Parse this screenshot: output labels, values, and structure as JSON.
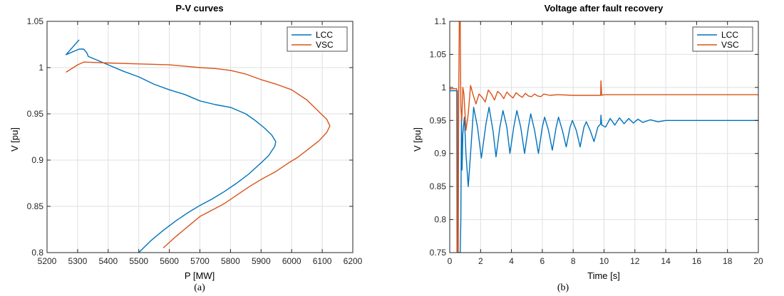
{
  "chart_data": [
    {
      "type": "line",
      "title": "P-V curves",
      "xlabel": "P [MW]",
      "ylabel": "V [pu]",
      "xlim": [
        5200,
        6200
      ],
      "ylim": [
        0.8,
        1.05
      ],
      "xticks": [
        5200,
        5300,
        5400,
        5500,
        5600,
        5700,
        5800,
        5900,
        6000,
        6100,
        6200
      ],
      "yticks": [
        0.8,
        0.85,
        0.9,
        0.95,
        1,
        1.05
      ],
      "grid": true,
      "legend": "top-right",
      "caption": "(a)",
      "series": [
        {
          "name": "LCC",
          "color": "#0072BD",
          "points": [
            [
              5305,
              1.03
            ],
            [
              5262,
              1.014
            ],
            [
              5305,
              1.02
            ],
            [
              5320,
              1.02
            ],
            [
              5330,
              1.016
            ],
            [
              5335,
              1.012
            ],
            [
              5350,
              1.01
            ],
            [
              5400,
              1.003
            ],
            [
              5450,
              0.996
            ],
            [
              5500,
              0.99
            ],
            [
              5550,
              0.982
            ],
            [
              5600,
              0.976
            ],
            [
              5650,
              0.971
            ],
            [
              5700,
              0.964
            ],
            [
              5750,
              0.96
            ],
            [
              5800,
              0.957
            ],
            [
              5850,
              0.95
            ],
            [
              5880,
              0.943
            ],
            [
              5910,
              0.935
            ],
            [
              5935,
              0.927
            ],
            [
              5948,
              0.92
            ],
            [
              5945,
              0.915
            ],
            [
              5925,
              0.905
            ],
            [
              5900,
              0.897
            ],
            [
              5860,
              0.885
            ],
            [
              5820,
              0.875
            ],
            [
              5780,
              0.866
            ],
            [
              5740,
              0.858
            ],
            [
              5700,
              0.851
            ],
            [
              5660,
              0.843
            ],
            [
              5620,
              0.834
            ],
            [
              5580,
              0.824
            ],
            [
              5540,
              0.813
            ],
            [
              5500,
              0.8
            ]
          ]
        },
        {
          "name": "VSC",
          "color": "#D95319",
          "points": [
            [
              5262,
              0.995
            ],
            [
              5300,
              1.003
            ],
            [
              5320,
              1.006
            ],
            [
              5400,
              1.005
            ],
            [
              5500,
              1.004
            ],
            [
              5600,
              1.003
            ],
            [
              5700,
              1.0
            ],
            [
              5750,
              0.999
            ],
            [
              5800,
              0.997
            ],
            [
              5850,
              0.993
            ],
            [
              5900,
              0.987
            ],
            [
              5950,
              0.982
            ],
            [
              6000,
              0.976
            ],
            [
              6050,
              0.965
            ],
            [
              6090,
              0.952
            ],
            [
              6115,
              0.944
            ],
            [
              6125,
              0.937
            ],
            [
              6115,
              0.93
            ],
            [
              6090,
              0.921
            ],
            [
              6055,
              0.912
            ],
            [
              6020,
              0.903
            ],
            [
              5990,
              0.897
            ],
            [
              5950,
              0.888
            ],
            [
              5900,
              0.879
            ],
            [
              5860,
              0.871
            ],
            [
              5820,
              0.862
            ],
            [
              5780,
              0.853
            ],
            [
              5740,
              0.846
            ],
            [
              5700,
              0.839
            ],
            [
              5660,
              0.828
            ],
            [
              5620,
              0.817
            ],
            [
              5580,
              0.805
            ]
          ]
        }
      ]
    },
    {
      "type": "line",
      "title": "Voltage after fault recovery",
      "xlabel": "Time [s]",
      "ylabel": "V [pu]",
      "xlim": [
        0,
        20
      ],
      "ylim": [
        0.75,
        1.1
      ],
      "xticks": [
        0,
        2,
        4,
        6,
        8,
        10,
        12,
        14,
        16,
        18,
        20
      ],
      "yticks": [
        0.75,
        0.8,
        0.85,
        0.9,
        0.95,
        1,
        1.05,
        1.1
      ],
      "grid": true,
      "legend": "top-right",
      "caption": "(b)",
      "series": [
        {
          "name": "LCC",
          "color": "#0072BD",
          "points": [
            [
              0,
              0.995
            ],
            [
              0.5,
              0.995
            ],
            [
              0.52,
              0.75
            ],
            [
              0.68,
              0.75
            ],
            [
              0.72,
              0.8
            ],
            [
              0.76,
              0.955
            ],
            [
              0.8,
              0.875
            ],
            [
              0.85,
              0.93
            ],
            [
              0.95,
              0.955
            ],
            [
              1.05,
              0.9
            ],
            [
              1.2,
              0.85
            ],
            [
              1.35,
              0.9
            ],
            [
              1.55,
              0.97
            ],
            [
              1.8,
              0.94
            ],
            [
              2.05,
              0.893
            ],
            [
              2.35,
              0.945
            ],
            [
              2.55,
              0.97
            ],
            [
              2.8,
              0.935
            ],
            [
              3.0,
              0.895
            ],
            [
              3.25,
              0.94
            ],
            [
              3.45,
              0.965
            ],
            [
              3.7,
              0.94
            ],
            [
              3.9,
              0.9
            ],
            [
              4.15,
              0.94
            ],
            [
              4.35,
              0.965
            ],
            [
              4.6,
              0.94
            ],
            [
              4.85,
              0.9
            ],
            [
              5.1,
              0.94
            ],
            [
              5.25,
              0.96
            ],
            [
              5.5,
              0.935
            ],
            [
              5.75,
              0.9
            ],
            [
              6.0,
              0.94
            ],
            [
              6.15,
              0.955
            ],
            [
              6.4,
              0.935
            ],
            [
              6.65,
              0.905
            ],
            [
              6.9,
              0.94
            ],
            [
              7.05,
              0.955
            ],
            [
              7.3,
              0.935
            ],
            [
              7.55,
              0.91
            ],
            [
              7.8,
              0.94
            ],
            [
              7.95,
              0.95
            ],
            [
              8.2,
              0.935
            ],
            [
              8.45,
              0.91
            ],
            [
              8.7,
              0.94
            ],
            [
              8.85,
              0.948
            ],
            [
              9.1,
              0.935
            ],
            [
              9.35,
              0.918
            ],
            [
              9.6,
              0.94
            ],
            [
              9.78,
              0.945
            ],
            [
              9.8,
              0.958
            ],
            [
              9.85,
              0.943
            ],
            [
              10.1,
              0.94
            ],
            [
              10.4,
              0.953
            ],
            [
              10.7,
              0.943
            ],
            [
              11.0,
              0.954
            ],
            [
              11.3,
              0.945
            ],
            [
              11.6,
              0.953
            ],
            [
              11.9,
              0.946
            ],
            [
              12.2,
              0.952
            ],
            [
              12.5,
              0.947
            ],
            [
              13.0,
              0.951
            ],
            [
              13.5,
              0.948
            ],
            [
              14.0,
              0.95
            ],
            [
              16.0,
              0.95
            ],
            [
              18.0,
              0.95
            ],
            [
              20.0,
              0.95
            ]
          ]
        },
        {
          "name": "VSC",
          "color": "#D95319",
          "points": [
            [
              0,
              0.998
            ],
            [
              0.45,
              0.998
            ],
            [
              0.47,
              0.75
            ],
            [
              0.55,
              0.75
            ],
            [
              0.58,
              0.98
            ],
            [
              0.62,
              1.1
            ],
            [
              0.68,
              1.1
            ],
            [
              0.72,
              0.97
            ],
            [
              0.78,
              0.95
            ],
            [
              0.85,
              1.0
            ],
            [
              0.92,
              0.99
            ],
            [
              1.05,
              0.935
            ],
            [
              1.2,
              0.96
            ],
            [
              1.35,
              1.003
            ],
            [
              1.5,
              0.99
            ],
            [
              1.7,
              0.975
            ],
            [
              1.9,
              0.99
            ],
            [
              2.1,
              0.985
            ],
            [
              2.3,
              0.978
            ],
            [
              2.5,
              0.996
            ],
            [
              2.7,
              0.99
            ],
            [
              2.9,
              0.981
            ],
            [
              3.1,
              0.994
            ],
            [
              3.3,
              0.99
            ],
            [
              3.5,
              0.983
            ],
            [
              3.7,
              0.993
            ],
            [
              3.9,
              0.988
            ],
            [
              4.1,
              0.984
            ],
            [
              4.3,
              0.992
            ],
            [
              4.5,
              0.988
            ],
            [
              4.7,
              0.985
            ],
            [
              4.9,
              0.991
            ],
            [
              5.1,
              0.987
            ],
            [
              5.3,
              0.986
            ],
            [
              5.5,
              0.99
            ],
            [
              5.7,
              0.987
            ],
            [
              5.9,
              0.986
            ],
            [
              6.1,
              0.99
            ],
            [
              6.5,
              0.988
            ],
            [
              7.0,
              0.989
            ],
            [
              8.0,
              0.988
            ],
            [
              9.0,
              0.988
            ],
            [
              9.78,
              0.988
            ],
            [
              9.8,
              1.01
            ],
            [
              9.85,
              0.988
            ],
            [
              10.0,
              0.989
            ],
            [
              12.0,
              0.989
            ],
            [
              16.0,
              0.989
            ],
            [
              20.0,
              0.989
            ]
          ]
        }
      ]
    }
  ]
}
